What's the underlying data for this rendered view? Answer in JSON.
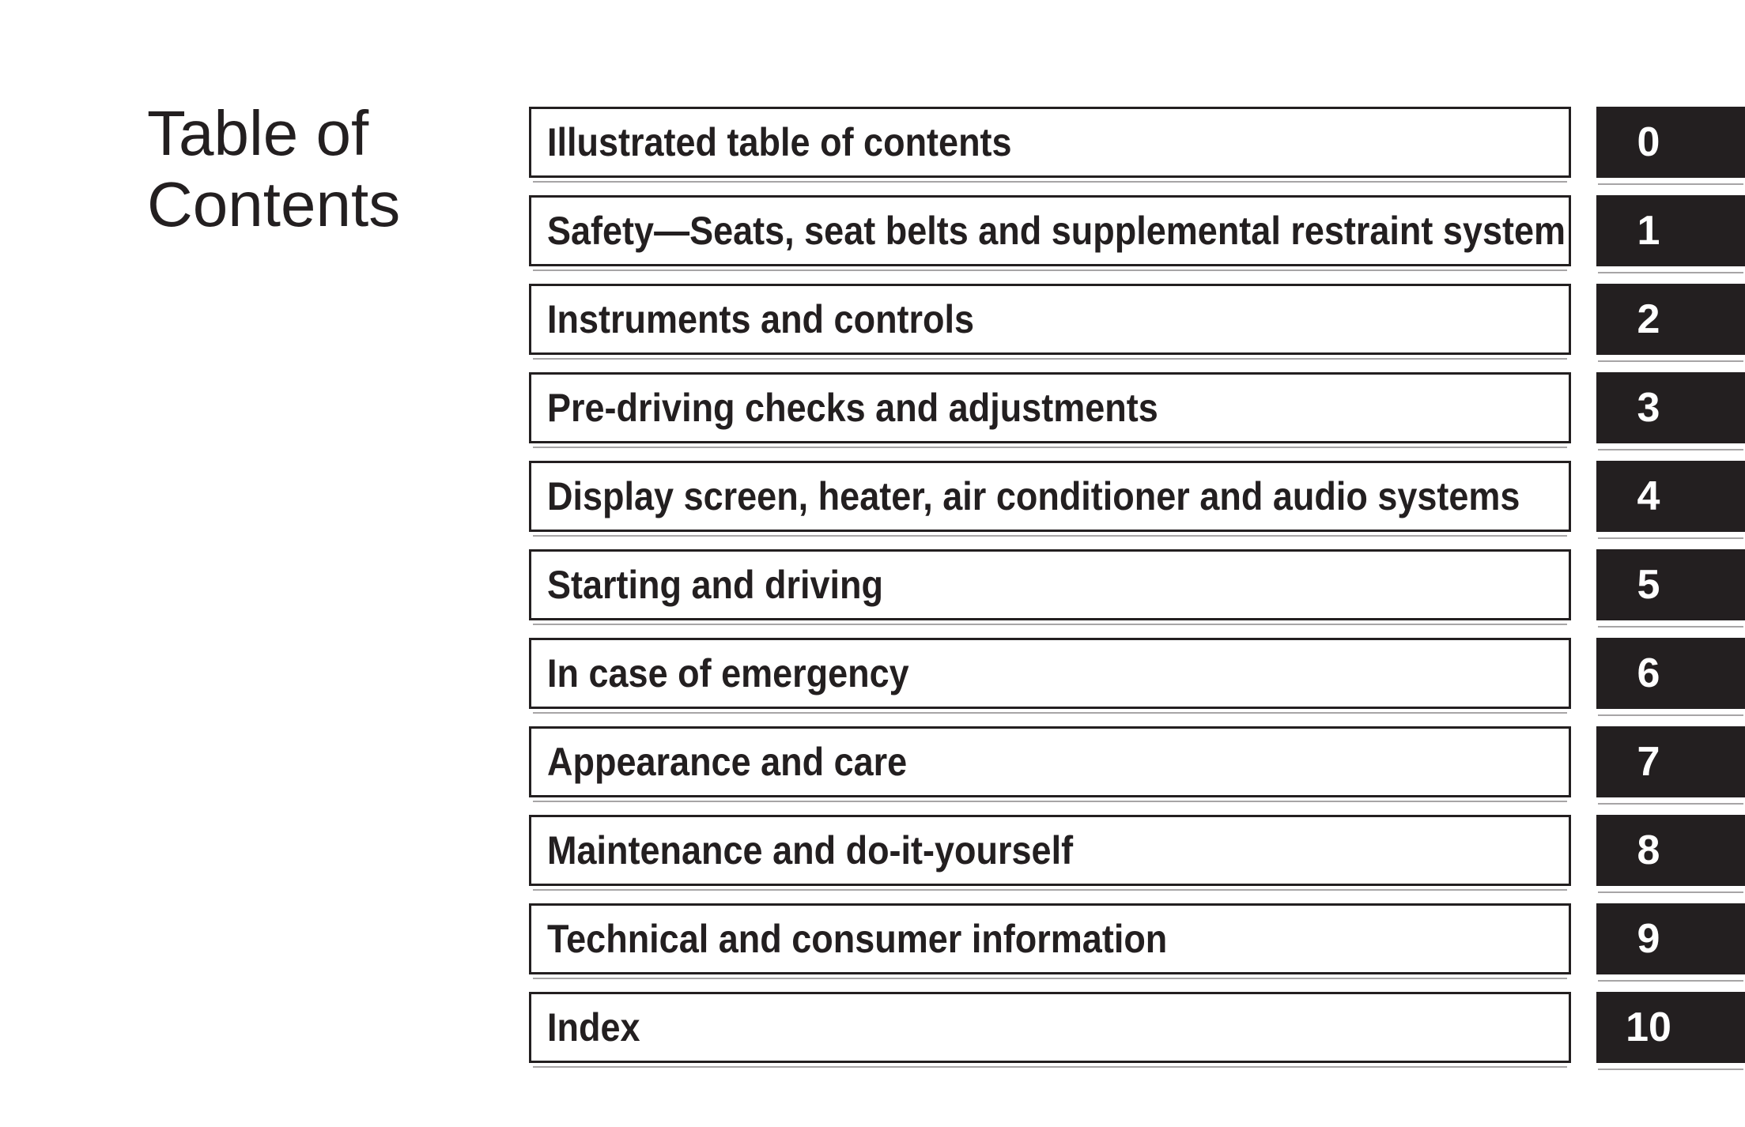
{
  "page": {
    "title": "Table of Contents",
    "ink_color": "#231f20",
    "paper_color": "#ffffff"
  },
  "toc": {
    "items": [
      {
        "label": "Illustrated table of contents",
        "number": "0"
      },
      {
        "label": "Safety—Seats, seat belts and supplemental restraint system",
        "number": "1"
      },
      {
        "label": "Instruments and controls",
        "number": "2"
      },
      {
        "label": "Pre-driving checks and adjustments",
        "number": "3"
      },
      {
        "label": "Display screen, heater, air conditioner and audio systems",
        "number": "4"
      },
      {
        "label": "Starting and driving",
        "number": "5"
      },
      {
        "label": "In case of emergency",
        "number": "6"
      },
      {
        "label": "Appearance and care",
        "number": "7"
      },
      {
        "label": "Maintenance and do-it-yourself",
        "number": "8"
      },
      {
        "label": "Technical and consumer information",
        "number": "9"
      },
      {
        "label": "Index",
        "number": "10"
      }
    ]
  }
}
